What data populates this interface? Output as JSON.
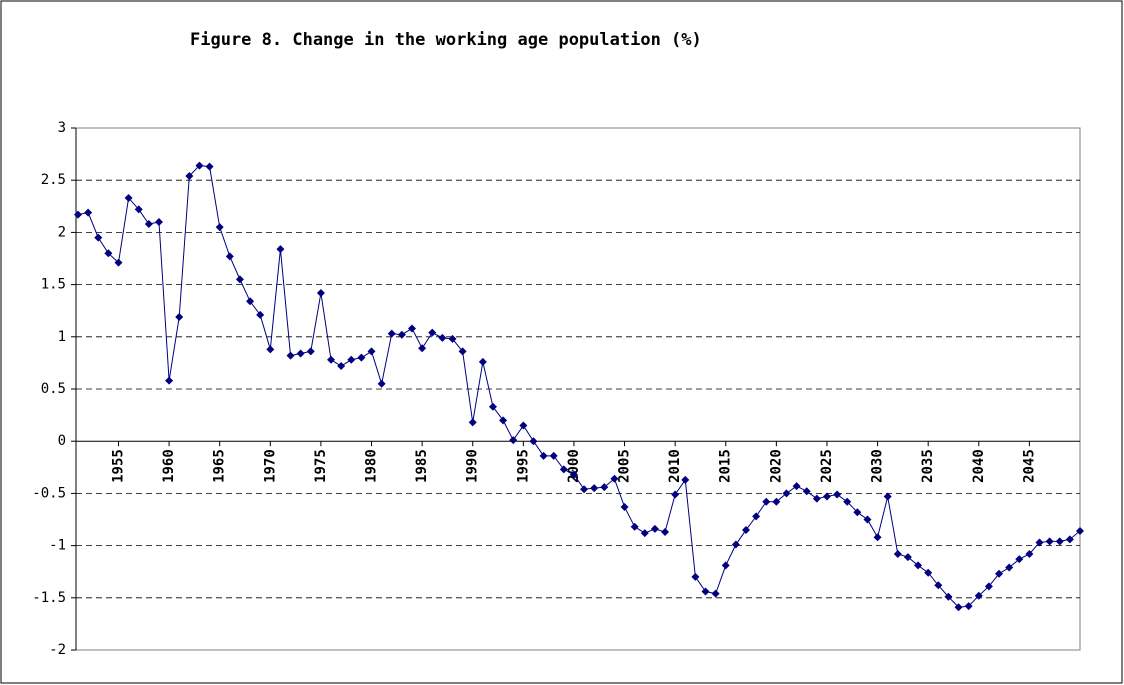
{
  "chart_data": {
    "type": "line",
    "title": "Figure 8. Change in the working age population (%)",
    "x": [
      1951,
      1952,
      1953,
      1954,
      1955,
      1956,
      1957,
      1958,
      1959,
      1960,
      1961,
      1962,
      1963,
      1964,
      1965,
      1966,
      1967,
      1968,
      1969,
      1970,
      1971,
      1972,
      1973,
      1974,
      1975,
      1976,
      1977,
      1978,
      1979,
      1980,
      1981,
      1982,
      1983,
      1984,
      1985,
      1986,
      1987,
      1988,
      1989,
      1990,
      1991,
      1992,
      1993,
      1994,
      1995,
      1996,
      1997,
      1998,
      1999,
      2000,
      2001,
      2002,
      2003,
      2004,
      2005,
      2006,
      2007,
      2008,
      2009,
      2010,
      2011,
      2012,
      2013,
      2014,
      2015,
      2016,
      2017,
      2018,
      2019,
      2020,
      2021,
      2022,
      2023,
      2024,
      2025,
      2026,
      2027,
      2028,
      2029,
      2030,
      2031,
      2032,
      2033,
      2034,
      2035,
      2036,
      2037,
      2038,
      2039,
      2040,
      2041,
      2042,
      2043,
      2044,
      2045,
      2046,
      2047,
      2048,
      2049,
      2050
    ],
    "series": [
      {
        "color": "#000080",
        "values": [
          2.17,
          2.19,
          1.95,
          1.8,
          1.71,
          2.33,
          2.22,
          2.08,
          2.1,
          0.58,
          1.19,
          2.54,
          2.64,
          2.63,
          2.05,
          1.77,
          1.55,
          1.34,
          1.21,
          0.88,
          1.84,
          0.82,
          0.84,
          0.86,
          1.42,
          0.78,
          0.72,
          0.78,
          0.8,
          0.86,
          0.55,
          1.03,
          1.02,
          1.08,
          0.89,
          1.04,
          0.99,
          0.98,
          0.86,
          0.18,
          0.76,
          0.33,
          0.2,
          0.01,
          0.15,
          0.0,
          -0.14,
          -0.14,
          -0.27,
          -0.32,
          -0.46,
          -0.45,
          -0.44,
          -0.36,
          -0.63,
          -0.82,
          -0.88,
          -0.84,
          -0.87,
          -0.51,
          -0.37,
          -1.3,
          -1.44,
          -1.46,
          -1.19,
          -0.99,
          -0.85,
          -0.72,
          -0.58,
          -0.58,
          -0.5,
          -0.43,
          -0.48,
          -0.55,
          -0.53,
          -0.51,
          -0.58,
          -0.68,
          -0.75,
          -0.92,
          -0.53,
          -1.08,
          -1.11,
          -1.19,
          -1.26,
          -1.38,
          -1.49,
          -1.59,
          -1.58,
          -1.48,
          -1.39,
          -1.27,
          -1.21,
          -1.13,
          -1.08,
          -0.97,
          -0.96,
          -0.96,
          -0.94,
          -0.86
        ]
      }
    ],
    "xlim": [
      1951,
      2050
    ],
    "xticks": [
      1955,
      1960,
      1965,
      1970,
      1975,
      1980,
      1985,
      1990,
      1995,
      2000,
      2005,
      2010,
      2015,
      2020,
      2025,
      2030,
      2035,
      2040,
      2045
    ],
    "ylim": [
      -2,
      3
    ],
    "yticks": [
      -2,
      -1.5,
      -1,
      -0.5,
      0,
      0.5,
      1,
      1.5,
      2,
      2.5,
      3
    ],
    "grid": true
  }
}
